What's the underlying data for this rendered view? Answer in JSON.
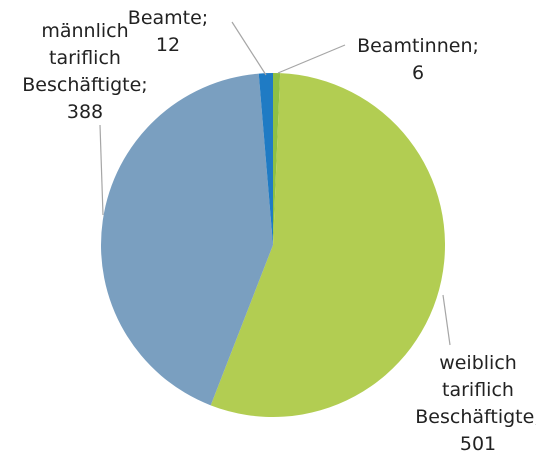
{
  "chart_data": {
    "type": "pie",
    "categories": [
      "Beamtinnen;",
      "weiblich tariflich Beschäftigte;",
      "männlich tariflich Beschäftigte;",
      "Beamte;"
    ],
    "values": [
      6,
      501,
      388,
      12
    ],
    "colors": [
      "#8fc043",
      "#b2cd52",
      "#7a9fc0",
      "#1f7bc4"
    ],
    "start_angle": 0,
    "direction": "clockwise"
  }
}
